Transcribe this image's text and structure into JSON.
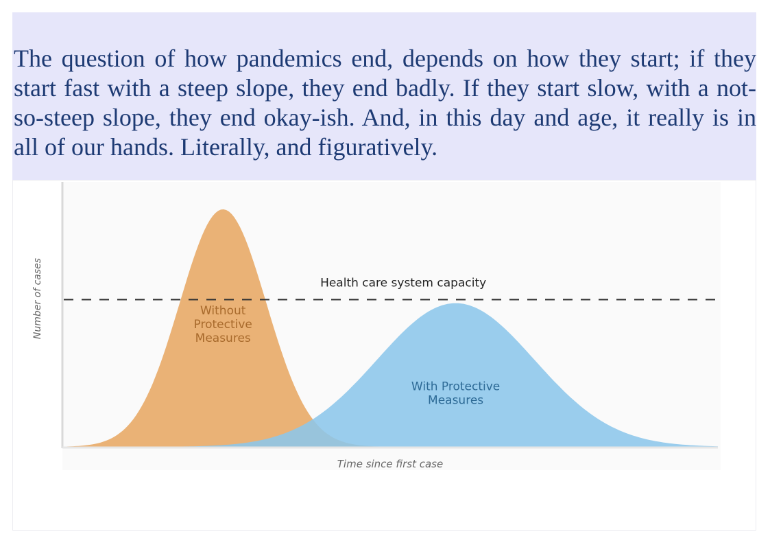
{
  "caption": {
    "text": "The question of how pandemics end, depends on how they start; if they start fast with a steep slope, they end badly. If they start slow, with a not-so-steep slope, they end okay-ish. And, in this day and age, it really is in all of our hands. Literally, and figuratively."
  },
  "chart_data": {
    "type": "area",
    "title": "",
    "xlabel": "Time since first case",
    "ylabel": "Number of cases",
    "grid": false,
    "legend": "none",
    "ylim": [
      0,
      1
    ],
    "xlim": [
      0,
      1
    ],
    "reference_line": {
      "label": "Health care system capacity",
      "y": 0.62,
      "style": "dashed",
      "color": "#333333"
    },
    "series": [
      {
        "name": "Without Protective Measures",
        "label_lines": [
          "Without",
          "Protective",
          "Measures"
        ],
        "color": "#eab276",
        "text_color": "#a86a2c",
        "peak_x": 0.245,
        "peak_y": 1.0,
        "spread_x": 0.066
      },
      {
        "name": "With Protective Measures",
        "label_lines": [
          "With Protective",
          "Measures"
        ],
        "color": "#8cc6ea",
        "text_color": "#2d6a96",
        "peak_x": 0.6,
        "peak_y": 0.605,
        "spread_x": 0.12
      }
    ]
  }
}
